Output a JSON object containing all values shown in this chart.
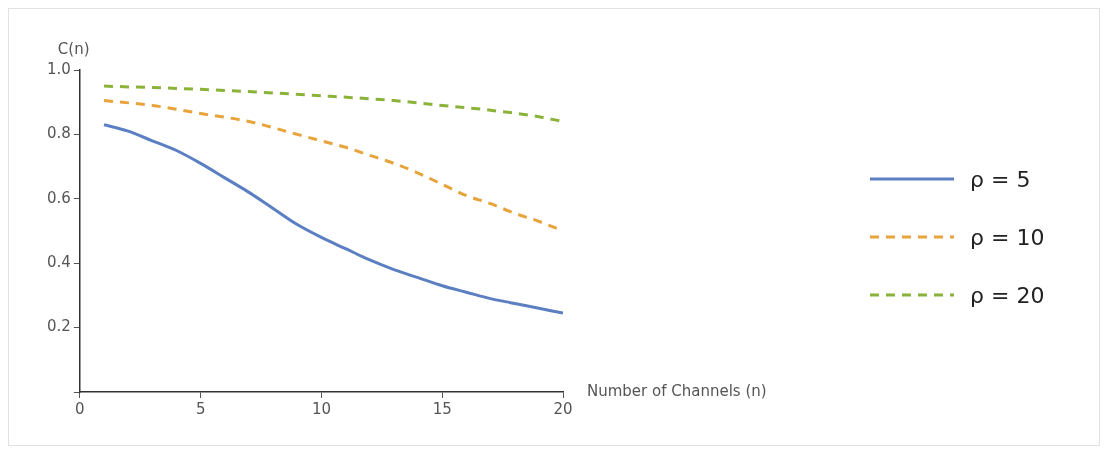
{
  "chart_data": {
    "type": "line",
    "xlabel": "Number of Channels (n)",
    "ylabel": "C(n)",
    "xlim": [
      0,
      20
    ],
    "xticks": [
      0,
      5,
      10,
      15,
      20
    ],
    "ylim": [
      0,
      1.0
    ],
    "yticks": [
      {
        "value": 0,
        "label": null
      },
      0.2,
      0.4,
      0.6,
      0.8,
      {
        "value": 1.0,
        "label": "1.0"
      }
    ],
    "grid": false,
    "legend": "right",
    "marker": "none",
    "series": [
      {
        "name": "ρ = 5",
        "color": "#5b7fc2",
        "line_style": "solid",
        "x": [
          1,
          2,
          3,
          4,
          5,
          6,
          7,
          8,
          9,
          10,
          11,
          12,
          13,
          14,
          15,
          16,
          17,
          18,
          19,
          20
        ],
        "values": [
          0.83,
          0.81,
          0.78,
          0.75,
          0.71,
          0.665,
          0.62,
          0.57,
          0.52,
          0.48,
          0.445,
          0.41,
          0.38,
          0.355,
          0.33,
          0.31,
          0.29,
          0.275,
          0.26,
          0.245
        ]
      },
      {
        "name": "ρ = 10",
        "color": "#e8a33a",
        "line_style": "dashed",
        "x": [
          1,
          3,
          5,
          7,
          9,
          10,
          11,
          12,
          13,
          14,
          15,
          16,
          17,
          18,
          19,
          20
        ],
        "values": [
          0.905,
          0.89,
          0.865,
          0.84,
          0.8,
          0.78,
          0.76,
          0.735,
          0.71,
          0.68,
          0.645,
          0.61,
          0.585,
          0.555,
          0.53,
          0.5
        ]
      },
      {
        "name": "ρ = 20",
        "color": "#8bb33a",
        "line_style": "dashed",
        "x": [
          1,
          5,
          10,
          13,
          15,
          17,
          19,
          20
        ],
        "values": [
          0.95,
          0.94,
          0.92,
          0.905,
          0.89,
          0.875,
          0.855,
          0.84
        ]
      }
    ]
  }
}
